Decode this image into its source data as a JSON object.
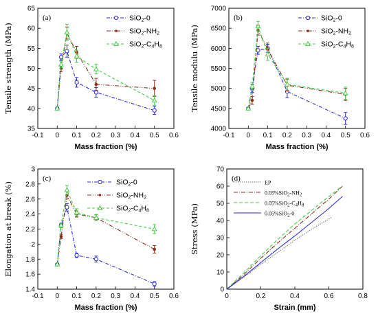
{
  "colors": {
    "sio2_0": "#2a2ad8",
    "sio2_nh2": "#8b2e1c",
    "sio2_c4h8": "#3fcf3f",
    "ep": "#777777"
  },
  "chart_data": [
    {
      "panel": "(a)",
      "type": "line",
      "xlabel": "Mass fraction (%)",
      "ylabel": "Tensile strength (MPa)",
      "xlim": [
        -0.1,
        0.6
      ],
      "ylim": [
        35,
        65
      ],
      "xticks": [
        "-0.1",
        "0",
        "0.1",
        "0.2",
        "0.3",
        "0.4",
        "0.5",
        "0.6"
      ],
      "yticks": [
        "35",
        "40",
        "45",
        "50",
        "55",
        "60",
        "65"
      ],
      "legend_position": "top-right",
      "series": [
        {
          "name": "SiO2-0",
          "legend": [
            "SiO",
            "2",
            "-0",
            ""
          ],
          "x": [
            0,
            0.02,
            0.05,
            0.1,
            0.2,
            0.5
          ],
          "y": [
            40,
            52.8,
            54.3,
            46.5,
            44.0,
            39.5
          ],
          "err": [
            0,
            0.8,
            1.5,
            1.2,
            1.2,
            1.0
          ],
          "color": "sio2_0",
          "marker": "circle",
          "dash": "5 2 1 2"
        },
        {
          "name": "SiO2-NH2",
          "legend": [
            "SiO",
            "2",
            "-NH",
            "2"
          ],
          "x": [
            0,
            0.02,
            0.05,
            0.1,
            0.2,
            0.5
          ],
          "y": [
            40,
            50.0,
            58.8,
            54.0,
            46.0,
            45.0
          ],
          "err": [
            0,
            0.8,
            1.5,
            1.5,
            1.5,
            2.0
          ],
          "color": "sio2_nh2",
          "marker": "dot",
          "dash": "6 2 1 2 1 2"
        },
        {
          "name": "SiO2-C4H8",
          "legend": [
            "SiO",
            "2",
            "-C",
            "4H8"
          ],
          "x": [
            0,
            0.02,
            0.05,
            0.1,
            0.2,
            0.5
          ],
          "y": [
            40,
            51.0,
            59.0,
            53.0,
            49.8,
            42.0
          ],
          "err": [
            0,
            0.8,
            2.0,
            1.5,
            1.2,
            1.2
          ],
          "color": "sio2_c4h8",
          "marker": "triangle",
          "dash": "4 3"
        }
      ]
    },
    {
      "panel": "(b)",
      "type": "line",
      "xlabel": "Mass fraction (%)",
      "ylabel": "Tensile modulu (MPa)",
      "xlim": [
        -0.1,
        0.6
      ],
      "ylim": [
        4000,
        7000
      ],
      "xticks": [
        "-0.1",
        "0",
        "0.1",
        "0.2",
        "0.3",
        "0.4",
        "0.5",
        "0.6"
      ],
      "yticks": [
        "4000",
        "4500",
        "5000",
        "5500",
        "6000",
        "6500",
        "7000"
      ],
      "legend_position": "top-right",
      "series": [
        {
          "name": "SiO2-0",
          "legend": [
            "SiO",
            "2",
            "-0",
            ""
          ],
          "x": [
            0,
            0.02,
            0.05,
            0.1,
            0.2,
            0.5
          ],
          "y": [
            4500,
            5000,
            5950,
            6000,
            4920,
            4250
          ],
          "err": [
            0,
            100,
            100,
            100,
            150,
            150
          ],
          "color": "sio2_0",
          "marker": "circle",
          "dash": "5 2 1 2"
        },
        {
          "name": "SiO2-NH2",
          "legend": [
            "SiO",
            "2",
            "-NH",
            "2"
          ],
          "x": [
            0,
            0.02,
            0.05,
            0.1,
            0.2,
            0.5
          ],
          "y": [
            4500,
            4700,
            6450,
            5980,
            5080,
            4850
          ],
          "err": [
            0,
            100,
            120,
            150,
            150,
            150
          ],
          "color": "sio2_nh2",
          "marker": "dot",
          "dash": "6 2 1 2 1 2"
        },
        {
          "name": "SiO2-C4H8",
          "legend": [
            "SiO",
            "2",
            "-C",
            "4H8"
          ],
          "x": [
            0,
            0.02,
            0.05,
            0.1,
            0.2,
            0.5
          ],
          "y": [
            4500,
            5050,
            6550,
            5850,
            5100,
            4880
          ],
          "err": [
            0,
            100,
            120,
            150,
            150,
            150
          ],
          "color": "sio2_c4h8",
          "marker": "triangle",
          "dash": "4 3"
        }
      ]
    },
    {
      "panel": "(c)",
      "type": "line",
      "xlabel": "Mass fraction (%)",
      "ylabel": "Elongation at break (%)",
      "xlim": [
        -0.1,
        0.6
      ],
      "ylim": [
        1.4,
        3.0
      ],
      "xticks": [
        "-0.1",
        "0",
        "0.1",
        "0.2",
        "0.3",
        "0.4",
        "0.5",
        "0.6"
      ],
      "yticks": [
        "1.4",
        "1.6",
        "1.8",
        "2",
        "2.2",
        "2.4",
        "2.6",
        "2.8",
        "3"
      ],
      "legend_position": "top-right",
      "series": [
        {
          "name": "SiO2-0",
          "legend": [
            "SiO",
            "2",
            "-0",
            ""
          ],
          "x": [
            0,
            0.02,
            0.05,
            0.1,
            0.2,
            0.5
          ],
          "y": [
            1.73,
            2.25,
            2.49,
            1.85,
            1.8,
            1.47
          ],
          "err": [
            0,
            0.03,
            0.05,
            0.03,
            0.04,
            0.03
          ],
          "color": "sio2_0",
          "marker": "circle",
          "dash": "5 2 1 2"
        },
        {
          "name": "SiO2-NH2",
          "legend": [
            "SiO",
            "2",
            "-NH",
            "2"
          ],
          "x": [
            0,
            0.02,
            0.05,
            0.1,
            0.2,
            0.5
          ],
          "y": [
            1.73,
            2.1,
            2.65,
            2.4,
            2.35,
            1.93
          ],
          "err": [
            0,
            0.03,
            0.05,
            0.04,
            0.04,
            0.05
          ],
          "color": "sio2_nh2",
          "marker": "dot",
          "dash": "6 2 1 2 1 2"
        },
        {
          "name": "SiO2-C4H8",
          "legend": [
            "SiO",
            "2",
            "-C",
            "4H8"
          ],
          "x": [
            0,
            0.02,
            0.05,
            0.1,
            0.2,
            0.5
          ],
          "y": [
            1.73,
            2.25,
            2.72,
            2.42,
            2.35,
            2.2
          ],
          "err": [
            0,
            0.03,
            0.06,
            0.05,
            0.04,
            0.06
          ],
          "color": "sio2_c4h8",
          "marker": "triangle",
          "dash": "4 3"
        }
      ]
    },
    {
      "panel": "(d)",
      "type": "line",
      "xlabel": "Strain (mm)",
      "ylabel": "Stress (MPa)",
      "xlim": [
        0,
        0.8
      ],
      "ylim": [
        0,
        70
      ],
      "xticks": [
        "0",
        "0.2",
        "0.4",
        "0.6",
        "0.8"
      ],
      "yticks": [
        "0",
        "10",
        "20",
        "30",
        "40",
        "50",
        "60",
        "70"
      ],
      "legend_position": "top-left",
      "series": [
        {
          "name": "EP",
          "legend": [
            "EP",
            "",
            "",
            ""
          ],
          "x": [
            0,
            0.1,
            0.2,
            0.3,
            0.4,
            0.5,
            0.62
          ],
          "y": [
            0,
            7,
            14.5,
            21.5,
            28.5,
            35,
            42
          ],
          "color": "ep",
          "dash": "1.5 1.5"
        },
        {
          "name": "0.05%SiO2-NH2",
          "legend": [
            "0.05%SiO",
            "2",
            "-NH",
            "2"
          ],
          "x": [
            0,
            0.1,
            0.2,
            0.3,
            0.4,
            0.5,
            0.6,
            0.68
          ],
          "y": [
            0,
            8.5,
            18,
            27,
            35.5,
            44,
            52.5,
            60
          ],
          "color": "sio2_nh2",
          "dash": "6 2 1 2"
        },
        {
          "name": "0.05%SiO2-C4H8",
          "legend": [
            "0.05%SiO",
            "2",
            "-C",
            "4H8"
          ],
          "x": [
            0,
            0.1,
            0.2,
            0.3,
            0.4,
            0.5,
            0.6,
            0.68
          ],
          "y": [
            0,
            9.5,
            19.5,
            29,
            38,
            46,
            54,
            60
          ],
          "color": "sio2_c4h8",
          "dash": "5 3"
        },
        {
          "name": "0.05%SiO2-0",
          "legend": [
            "0.05%SiO",
            "2",
            "-0",
            ""
          ],
          "x": [
            0,
            0.1,
            0.2,
            0.3,
            0.4,
            0.5,
            0.6,
            0.68
          ],
          "y": [
            0,
            7.5,
            15.5,
            23.5,
            31,
            39,
            47,
            54
          ],
          "color": "sio2_0",
          "dash": ""
        }
      ]
    }
  ]
}
